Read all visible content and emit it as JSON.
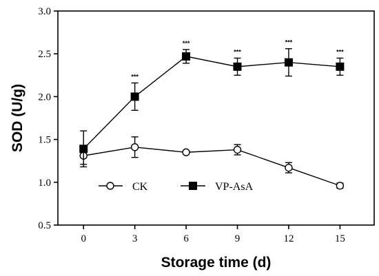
{
  "chart_data": {
    "type": "line",
    "title": "",
    "xlabel": "Storage time (d)",
    "ylabel": "SOD (U/g)",
    "x": [
      0,
      3,
      6,
      9,
      12,
      15
    ],
    "x_ticks": [
      "0",
      "3",
      "6",
      "9",
      "12",
      "15"
    ],
    "xlim": [
      -1.5,
      17
    ],
    "y_ticks": [
      "0.5",
      "1.0",
      "1.5",
      "2.0",
      "2.5",
      "3.0"
    ],
    "ylim": [
      0.5,
      3.0
    ],
    "legend_position": "bottom-left",
    "grid": false,
    "series": [
      {
        "name": "CK",
        "marker": "open-circle",
        "color": "#000000",
        "values": [
          1.31,
          1.41,
          1.35,
          1.38,
          1.17,
          0.96
        ],
        "errors": [
          0.1,
          0.12,
          0.02,
          0.06,
          0.06,
          0.03
        ]
      },
      {
        "name": "VP-AsA",
        "marker": "filled-square",
        "color": "#000000",
        "values": [
          1.39,
          2.0,
          2.47,
          2.35,
          2.4,
          2.35
        ],
        "errors": [
          0.21,
          0.16,
          0.08,
          0.1,
          0.16,
          0.1
        ]
      }
    ],
    "annotations": [
      {
        "x": 3,
        "label": "***"
      },
      {
        "x": 6,
        "label": "***"
      },
      {
        "x": 9,
        "label": "***"
      },
      {
        "x": 12,
        "label": "***"
      },
      {
        "x": 15,
        "label": "***"
      }
    ]
  }
}
